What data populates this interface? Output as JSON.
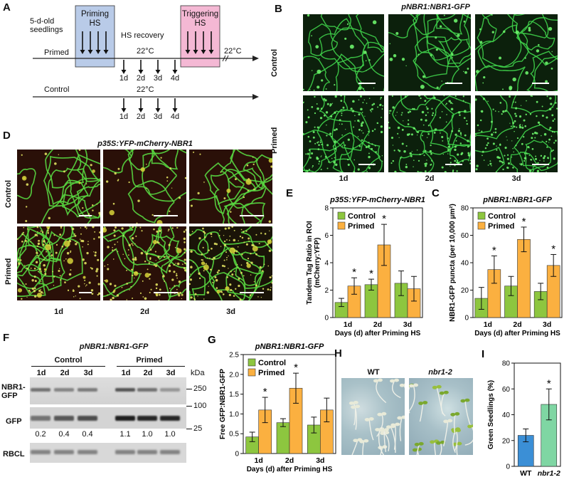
{
  "panels": {
    "A": {
      "letter": "A",
      "seedlings": "5-d-old\nseedlings",
      "priming": "Priming\nHS",
      "recovery": "HS recovery",
      "triggering": "Triggering\nHS",
      "temp_primed": "22°C",
      "temp_after": "22°C",
      "temp_control": "22°C",
      "row_primed": "Primed",
      "row_control": "Control",
      "days": [
        "1d",
        "2d",
        "3d",
        "4d"
      ],
      "priming_color": "#b9cbe8",
      "triggering_color": "#f4b8d4"
    },
    "B": {
      "letter": "B",
      "title": "pNBR1:NBR1-GFP",
      "rows": [
        "Control",
        "Primed"
      ],
      "cols": [
        "1d",
        "2d",
        "3d"
      ]
    },
    "D": {
      "letter": "D",
      "title": "p35S:YFP-mCherry-NBR1",
      "rows": [
        "Control",
        "Primed"
      ],
      "cols": [
        "1d",
        "2d",
        "3d"
      ]
    },
    "F": {
      "letter": "F",
      "title": "pNBR1:NBR1-GFP",
      "groups": [
        "Control",
        "Primed"
      ],
      "lanes": [
        "1d",
        "2d",
        "3d",
        "1d",
        "2d",
        "3d"
      ],
      "kda": "kDa",
      "markers": [
        "250",
        "100",
        "25"
      ],
      "rows": [
        "NBR1-\nGFP",
        "GFP",
        "RBCL"
      ],
      "ratios": [
        "0.2",
        "0.4",
        "0.4",
        "1.1",
        "1.0",
        "1.0"
      ]
    },
    "H": {
      "letter": "H",
      "wt": "WT",
      "mutant": "nbr1-2"
    }
  },
  "chart_data": [
    {
      "id": "E",
      "letter": "E",
      "type": "bar",
      "title": "p35S:YFP-mCherry-NBR1",
      "ylabel": "Tandem Tag Ratio in ROI\n(mCherry:YFP)",
      "xlabel": "Days (d) after Priming HS",
      "categories": [
        "1d",
        "2d",
        "3d"
      ],
      "ylim": [
        0,
        8
      ],
      "yticks": [
        "0",
        "2",
        "4",
        "6",
        "8"
      ],
      "series": [
        {
          "name": "Control",
          "color": "#8dc63f",
          "values": [
            1.1,
            2.4,
            2.5
          ],
          "err": [
            0.3,
            0.4,
            0.9
          ]
        },
        {
          "name": "Primed",
          "color": "#fbb040",
          "values": [
            2.3,
            5.3,
            2.1
          ],
          "err": [
            0.6,
            1.5,
            0.9
          ]
        }
      ],
      "significant": [
        false,
        true,
        false,
        true,
        true,
        false
      ],
      "mark": "*",
      "legend": "top-left"
    },
    {
      "id": "C",
      "letter": "C",
      "type": "bar",
      "title": "pNBR1:NBR1-GFP",
      "ylabel": "NBR1-GFP puncta (per 10,000 µm²)",
      "xlabel": "Days (d) after Priming HS",
      "categories": [
        "1d",
        "2d",
        "3d"
      ],
      "ylim": [
        0,
        80
      ],
      "yticks": [
        "0",
        "20",
        "40",
        "60",
        "80"
      ],
      "series": [
        {
          "name": "Control",
          "color": "#8dc63f",
          "values": [
            14,
            23,
            19
          ],
          "err": [
            8,
            7,
            6
          ]
        },
        {
          "name": "Primed",
          "color": "#fbb040",
          "values": [
            35,
            57,
            38
          ],
          "err": [
            10,
            9,
            8
          ]
        }
      ],
      "significant": [
        false,
        false,
        false,
        true,
        true,
        true
      ],
      "mark": "*",
      "legend": "top-left"
    },
    {
      "id": "G",
      "letter": "G",
      "type": "bar",
      "title": "pNBR1:NBR1-GFP",
      "ylabel": "Free GFP:NBR1-GFP",
      "xlabel": "Days (d) after Priming HS",
      "categories": [
        "1d",
        "2d",
        "3d"
      ],
      "ylim": [
        0,
        2.5
      ],
      "yticks": [
        "0",
        "0.5",
        "1.0",
        "1.5",
        "2.0",
        "2.5"
      ],
      "series": [
        {
          "name": "Control",
          "color": "#8dc63f",
          "values": [
            0.42,
            0.78,
            0.72
          ],
          "err": [
            0.12,
            0.1,
            0.2
          ]
        },
        {
          "name": "Primed",
          "color": "#fbb040",
          "values": [
            1.1,
            1.65,
            1.1
          ],
          "err": [
            0.32,
            0.38,
            0.3
          ]
        }
      ],
      "significant": [
        false,
        false,
        false,
        true,
        true,
        false
      ],
      "mark": "*",
      "legend": "top-left"
    },
    {
      "id": "I",
      "letter": "I",
      "type": "bar",
      "title": "",
      "ylabel": "Green Seedlings (%)",
      "xlabel": "",
      "categories": [
        "WT",
        "nbr1-2"
      ],
      "ylim": [
        0,
        80
      ],
      "yticks": [
        "0",
        "20",
        "40",
        "60",
        "80"
      ],
      "series": [
        {
          "name": "",
          "color": "#3b8fd6",
          "values": [
            24,
            48
          ],
          "err": [
            5,
            12
          ],
          "colors": [
            "#3b8fd6",
            "#7fd6a3"
          ]
        }
      ],
      "significant": [
        false,
        true
      ],
      "mark": "*"
    }
  ]
}
